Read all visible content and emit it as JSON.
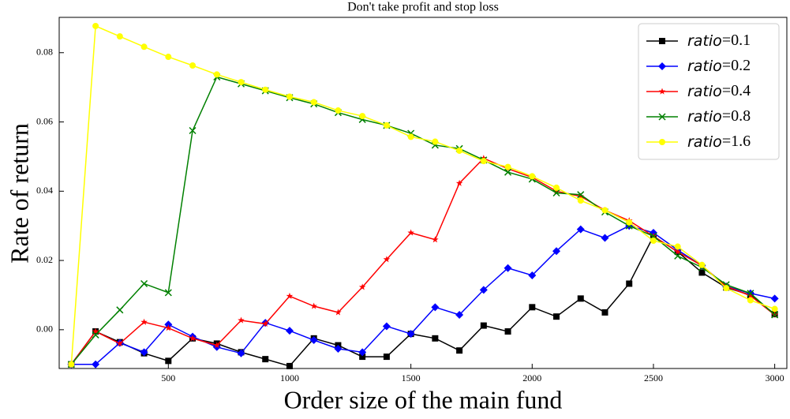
{
  "chart_data": {
    "type": "line",
    "title": "Don't take profit and stop loss",
    "xlabel": "Order size of the main fund",
    "ylabel": "Rate of return",
    "x": [
      100,
      200,
      300,
      400,
      500,
      600,
      700,
      800,
      900,
      1000,
      1100,
      1200,
      1300,
      1400,
      1500,
      1600,
      1700,
      1800,
      1900,
      2000,
      2100,
      2200,
      2300,
      2400,
      2500,
      2600,
      2700,
      2800,
      2900,
      3000
    ],
    "xlim": [
      50,
      3050
    ],
    "xticks": [
      500,
      1000,
      1500,
      2000,
      2500,
      3000
    ],
    "ylim": [
      -0.0112,
      0.0902
    ],
    "yticks": [
      {
        "value": 0,
        "label": "0.00"
      },
      {
        "value": 0.02,
        "label": "0.02"
      },
      {
        "value": 0.04,
        "label": "0.04"
      },
      {
        "value": 0.06,
        "label": "0.06"
      },
      {
        "value": 0.08,
        "label": "0.08"
      }
    ],
    "legend": "upper right",
    "series": [
      {
        "name": "ratio=0.1",
        "color": "#000000",
        "marker": "square",
        "values": [
          -0.01,
          -0.0005,
          -0.0036,
          -0.0068,
          -0.009,
          -0.0025,
          -0.004,
          -0.0065,
          -0.0085,
          -0.0105,
          -0.0025,
          -0.0045,
          -0.0078,
          -0.0078,
          -0.0012,
          -0.0025,
          -0.006,
          0.0012,
          -0.0005,
          0.0065,
          0.0038,
          0.009,
          0.005,
          0.0133,
          0.027,
          0.0225,
          0.0165,
          0.0122,
          0.01,
          0.0045
        ]
      },
      {
        "name": "ratio=0.2",
        "color": "#0000ff",
        "marker": "diamond",
        "values": [
          -0.01,
          -0.01,
          -0.0038,
          -0.0065,
          0.0015,
          -0.002,
          -0.005,
          -0.0068,
          0.002,
          -0.0003,
          -0.003,
          -0.0055,
          -0.0065,
          0.001,
          -0.0012,
          0.0065,
          0.0043,
          0.0115,
          0.0178,
          0.0157,
          0.0227,
          0.029,
          0.0265,
          0.03,
          0.028,
          0.023,
          0.0185,
          0.0125,
          0.0105,
          0.009
        ]
      },
      {
        "name": "ratio=0.4",
        "color": "#ff0000",
        "marker": "star",
        "values": [
          -0.01,
          -0.0005,
          -0.004,
          0.0022,
          0.0005,
          -0.0025,
          -0.0045,
          0.0027,
          0.0017,
          0.0097,
          0.0068,
          0.005,
          0.0123,
          0.0203,
          0.028,
          0.026,
          0.0423,
          0.0495,
          0.0465,
          0.044,
          0.04,
          0.0385,
          0.0345,
          0.0315,
          0.027,
          0.0225,
          0.0185,
          0.0125,
          0.0098,
          0.0043
        ]
      },
      {
        "name": "ratio=0.8",
        "color": "#008000",
        "marker": "x",
        "values": [
          -0.01,
          -0.0015,
          0.0057,
          0.0133,
          0.0107,
          0.0575,
          0.073,
          0.071,
          0.069,
          0.067,
          0.0652,
          0.0627,
          0.0607,
          0.059,
          0.0567,
          0.0533,
          0.0523,
          0.049,
          0.0455,
          0.0435,
          0.0395,
          0.039,
          0.034,
          0.03,
          0.027,
          0.0213,
          0.018,
          0.013,
          0.0105,
          0.0043
        ]
      },
      {
        "name": "ratio=1.6",
        "color": "#ffff00",
        "marker": "circle",
        "values": [
          -0.01,
          0.0877,
          0.0847,
          0.0817,
          0.0788,
          0.0763,
          0.0737,
          0.0715,
          0.0693,
          0.0673,
          0.0657,
          0.0633,
          0.0617,
          0.059,
          0.0557,
          0.0543,
          0.0517,
          0.0487,
          0.047,
          0.0443,
          0.041,
          0.0373,
          0.0345,
          0.031,
          0.0257,
          0.024,
          0.0187,
          0.012,
          0.0085,
          0.006
        ]
      }
    ]
  }
}
